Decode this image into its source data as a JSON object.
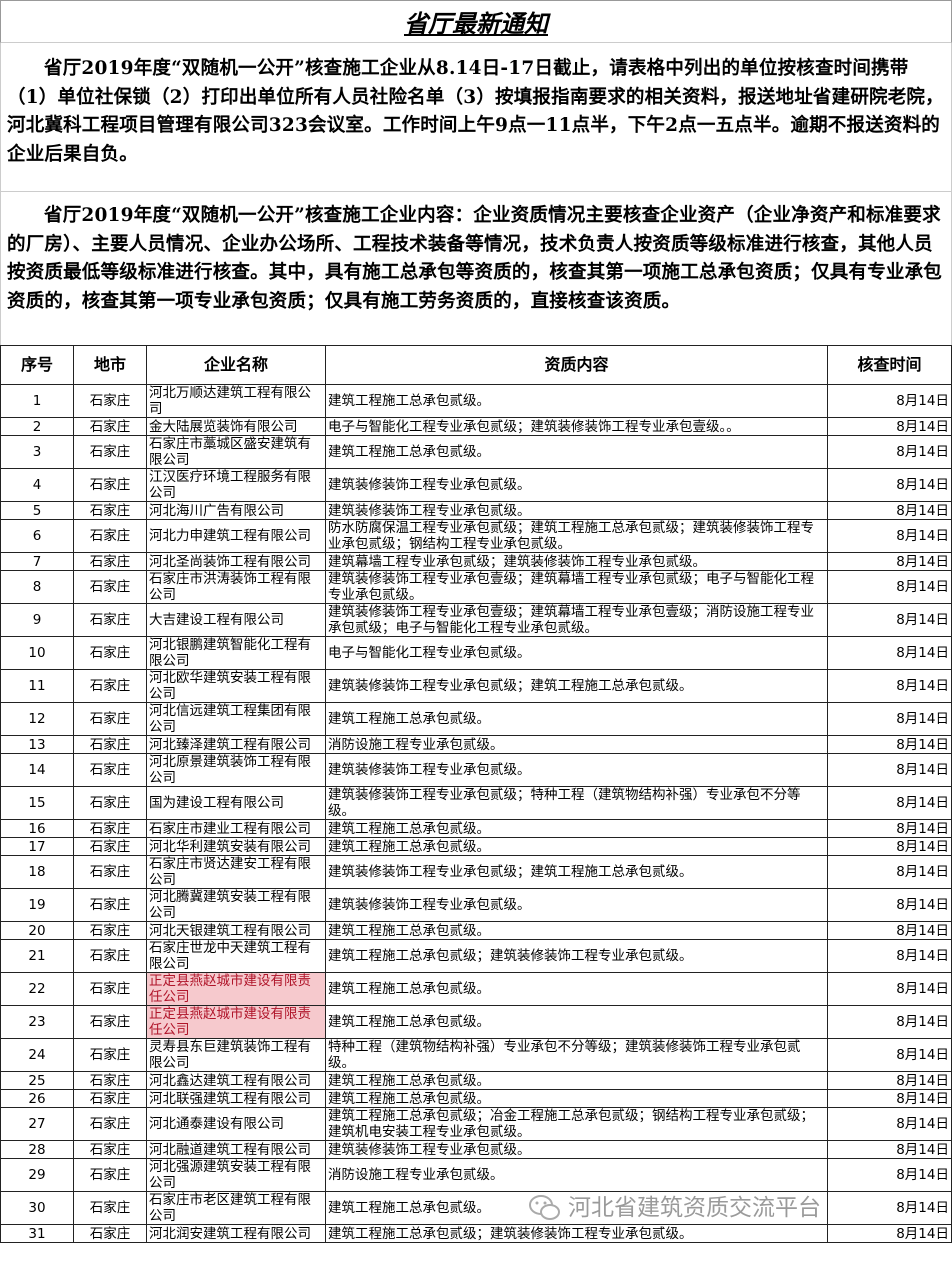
{
  "title": "省厅最新通知",
  "paragraphs": [
    "省厅2019年度“双随机一公开”核查施工企业从8.14日-17日截止，请表格中列出的单位按核查时间携带（1）单位社保锁（2）打印出单位所有人员社险名单（3）按填报指南要求的相关资料，报送地址省建研院老院，河北冀科工程项目管理有限公司323会议室。工作时间上午9点一11点半，下午2点一五点半。逾期不报送资料的企业后果自负。",
    "省厅2019年度“双随机一公开”核查施工企业内容：企业资质情况主要核查企业资产（企业净资产和标准要求的厂房）、主要人员情况、企业办公场所、工程技术装备等情况，技术负责人按资质等级标准进行核查，其他人员按资质最低等级标准进行核查。其中，具有施工总承包等资质的，核查其第一项施工总承包资质；仅具有专业承包资质的，核查其第一项专业承包资质；仅具有施工劳务资质的，直接核查该资质。"
  ],
  "table": {
    "headers": [
      "序号",
      "地市",
      "企业名称",
      "资质内容",
      "核查时间"
    ],
    "highlight_color": "#f6c9cd",
    "rows": [
      {
        "no": "1",
        "city": "石家庄",
        "name": "河北万顺达建筑工程有限公司",
        "qual": "建筑工程施工总承包贰级。",
        "date": "8月14日"
      },
      {
        "no": "2",
        "city": "石家庄",
        "name": "金大陆展览装饰有限公司",
        "qual": "电子与智能化工程专业承包贰级；建筑装修装饰工程专业承包壹级。。",
        "date": "8月14日"
      },
      {
        "no": "3",
        "city": "石家庄",
        "name": "石家庄市藁城区盛安建筑有限公司",
        "qual": "建筑工程施工总承包贰级。",
        "date": "8月14日"
      },
      {
        "no": "4",
        "city": "石家庄",
        "name": "江汉医疗环境工程服务有限公司",
        "qual": "建筑装修装饰工程专业承包贰级。",
        "date": "8月14日"
      },
      {
        "no": "5",
        "city": "石家庄",
        "name": "河北海川广告有限公司",
        "qual": "建筑装修装饰工程专业承包贰级。",
        "date": "8月14日"
      },
      {
        "no": "6",
        "city": "石家庄",
        "name": "河北力申建筑工程有限公司",
        "qual": "防水防腐保温工程专业承包贰级；建筑工程施工总承包贰级；建筑装修装饰工程专业承包贰级；钢结构工程专业承包贰级。",
        "date": "8月14日"
      },
      {
        "no": "7",
        "city": "石家庄",
        "name": "河北圣尚装饰工程有限公司",
        "qual": "建筑幕墙工程专业承包贰级；建筑装修装饰工程专业承包贰级。",
        "date": "8月14日"
      },
      {
        "no": "8",
        "city": "石家庄",
        "name": "石家庄市洪涛装饰工程有限公司",
        "qual": "建筑装修装饰工程专业承包壹级；建筑幕墙工程专业承包贰级；电子与智能化工程专业承包贰级。",
        "date": "8月14日"
      },
      {
        "no": "9",
        "city": "石家庄",
        "name": "大吉建设工程有限公司",
        "qual": "建筑装修装饰工程专业承包壹级；建筑幕墙工程专业承包壹级；消防设施工程专业承包贰级；电子与智能化工程专业承包贰级。",
        "date": "8月14日"
      },
      {
        "no": "10",
        "city": "石家庄",
        "name": "河北银鹏建筑智能化工程有限公司",
        "qual": "电子与智能化工程专业承包贰级。",
        "date": "8月14日"
      },
      {
        "no": "11",
        "city": "石家庄",
        "name": "河北欧华建筑安装工程有限公司",
        "qual": "建筑装修装饰工程专业承包贰级；建筑工程施工总承包贰级。",
        "date": "8月14日"
      },
      {
        "no": "12",
        "city": "石家庄",
        "name": "河北信远建筑工程集团有限公司",
        "qual": "建筑工程施工总承包贰级。",
        "date": "8月14日"
      },
      {
        "no": "13",
        "city": "石家庄",
        "name": "河北臻泽建筑工程有限公司",
        "qual": "消防设施工程专业承包贰级。",
        "date": "8月14日"
      },
      {
        "no": "14",
        "city": "石家庄",
        "name": "河北原景建筑装饰工程有限公司",
        "qual": "建筑装修装饰工程专业承包贰级。",
        "date": "8月14日"
      },
      {
        "no": "15",
        "city": "石家庄",
        "name": "国为建设工程有限公司",
        "qual": "建筑装修装饰工程专业承包贰级；特种工程（建筑物结构补强）专业承包不分等级。",
        "date": "8月14日"
      },
      {
        "no": "16",
        "city": "石家庄",
        "name": "石家庄市建业工程有限公司",
        "qual": "建筑工程施工总承包贰级。",
        "date": "8月14日"
      },
      {
        "no": "17",
        "city": "石家庄",
        "name": "河北华利建筑安装有限公司",
        "qual": "建筑工程施工总承包贰级。",
        "date": "8月14日"
      },
      {
        "no": "18",
        "city": "石家庄",
        "name": "石家庄市贤达建安工程有限公司",
        "qual": "建筑装修装饰工程专业承包贰级；建筑工程施工总承包贰级。",
        "date": "8月14日"
      },
      {
        "no": "19",
        "city": "石家庄",
        "name": "河北腾冀建筑安装工程有限公司",
        "qual": "建筑装修装饰工程专业承包贰级。",
        "date": "8月14日"
      },
      {
        "no": "20",
        "city": "石家庄",
        "name": "河北天银建筑工程有限公司",
        "qual": "建筑工程施工总承包贰级。",
        "date": "8月14日"
      },
      {
        "no": "21",
        "city": "石家庄",
        "name": "石家庄世龙中天建筑工程有限公司",
        "qual": "建筑工程施工总承包贰级；建筑装修装饰工程专业承包贰级。",
        "date": "8月14日"
      },
      {
        "no": "22",
        "city": "石家庄",
        "name": "正定县燕赵城市建设有限责任公司",
        "qual": "建筑工程施工总承包贰级。",
        "date": "8月14日",
        "highlight": true
      },
      {
        "no": "23",
        "city": "石家庄",
        "name": "正定县燕赵城市建设有限责任公司",
        "qual": "建筑工程施工总承包贰级。",
        "date": "8月14日",
        "highlight": true
      },
      {
        "no": "24",
        "city": "石家庄",
        "name": "灵寿县东巨建筑装饰工程有限公司",
        "qual": "特种工程（建筑物结构补强）专业承包不分等级；建筑装修装饰工程专业承包贰级。",
        "date": "8月14日"
      },
      {
        "no": "25",
        "city": "石家庄",
        "name": "河北鑫达建筑工程有限公司",
        "qual": "建筑工程施工总承包贰级。",
        "date": "8月14日"
      },
      {
        "no": "26",
        "city": "石家庄",
        "name": "河北联强建筑工程有限公司",
        "qual": "建筑工程施工总承包贰级。",
        "date": "8月14日"
      },
      {
        "no": "27",
        "city": "石家庄",
        "name": "河北通泰建设有限公司",
        "qual": "建筑工程施工总承包贰级；冶金工程施工总承包贰级；钢结构工程专业承包贰级；建筑机电安装工程专业承包贰级。",
        "date": "8月14日"
      },
      {
        "no": "28",
        "city": "石家庄",
        "name": "河北融道建筑工程有限公司",
        "qual": "建筑装修装饰工程专业承包贰级。",
        "date": "8月14日"
      },
      {
        "no": "29",
        "city": "石家庄",
        "name": "河北强源建筑安装工程有限公司",
        "qual": "消防设施工程专业承包贰级。",
        "date": "8月14日"
      },
      {
        "no": "30",
        "city": "石家庄",
        "name": "石家庄市老区建筑工程有限公司",
        "qual": "建筑工程施工总承包贰级。",
        "date": "8月14日"
      },
      {
        "no": "31",
        "city": "石家庄",
        "name": "河北润安建筑工程有限公司",
        "qual": "建筑工程施工总承包贰级；建筑装修装饰工程专业承包贰级。",
        "date": "8月14日"
      }
    ]
  },
  "watermark": {
    "icon": "wechat-icon",
    "text": "河北省建筑资质交流平台"
  }
}
